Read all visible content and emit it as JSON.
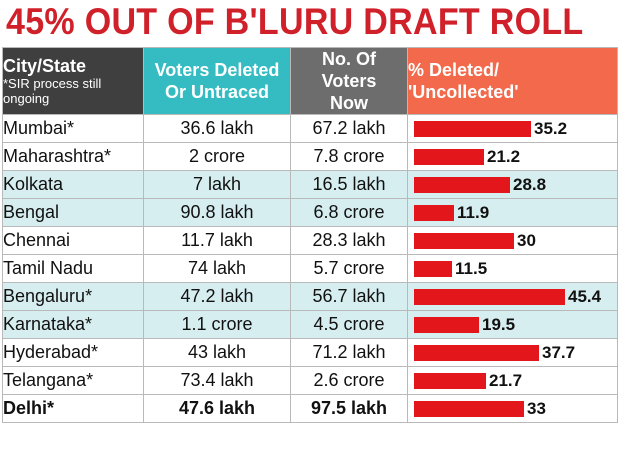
{
  "headline": "45% OUT OF B'LURU DRAFT ROLL",
  "columns": {
    "city": "City/State",
    "city_note": "*SIR process still ongoing",
    "deleted": "Voters Deleted Or Untraced",
    "now": "No. Of Voters Now",
    "pct": "% Deleted/ 'Uncollected'"
  },
  "colors": {
    "bar": "#e3161b",
    "headline": "#d0202a",
    "shade": "#d7eef0"
  },
  "chart_data": {
    "type": "bar",
    "title": "45% OUT OF B'LURU DRAFT ROLL",
    "xlim": [
      0,
      50
    ],
    "categories": [
      "Mumbai*",
      "Maharashtra*",
      "Kolkata",
      "Bengal",
      "Chennai",
      "Tamil Nadu",
      "Bengaluru*",
      "Karnataka*",
      "Hyderabad*",
      "Telangana*",
      "Delhi*"
    ],
    "values": [
      35.2,
      21.2,
      28.8,
      11.9,
      30,
      11.5,
      45.4,
      19.5,
      37.7,
      21.7,
      33
    ],
    "rows": [
      {
        "name": "Mumbai*",
        "deleted": "36.6 lakh",
        "now": "67.2 lakh",
        "pct": 35.2,
        "label": "35.2",
        "shade": false,
        "bold": false
      },
      {
        "name": "Maharashtra*",
        "deleted": "2 crore",
        "now": "7.8 crore",
        "pct": 21.2,
        "label": "21.2",
        "shade": false,
        "bold": false
      },
      {
        "name": "Kolkata",
        "deleted": "7 lakh",
        "now": "16.5 lakh",
        "pct": 28.8,
        "label": "28.8",
        "shade": true,
        "bold": false
      },
      {
        "name": "Bengal",
        "deleted": "90.8 lakh",
        "now": "6.8 crore",
        "pct": 11.9,
        "label": "11.9",
        "shade": true,
        "bold": false
      },
      {
        "name": "Chennai",
        "deleted": "11.7 lakh",
        "now": "28.3 lakh",
        "pct": 30,
        "label": "30",
        "shade": false,
        "bold": false
      },
      {
        "name": "Tamil Nadu",
        "deleted": "74 lakh",
        "now": "5.7 crore",
        "pct": 11.5,
        "label": "11.5",
        "shade": false,
        "bold": false
      },
      {
        "name": "Bengaluru*",
        "deleted": "47.2 lakh",
        "now": "56.7 lakh",
        "pct": 45.4,
        "label": "45.4",
        "shade": true,
        "bold": false
      },
      {
        "name": "Karnataka*",
        "deleted": "1.1 crore",
        "now": "4.5 crore",
        "pct": 19.5,
        "label": "19.5",
        "shade": true,
        "bold": false
      },
      {
        "name": "Hyderabad*",
        "deleted": "43 lakh",
        "now": "71.2 lakh",
        "pct": 37.7,
        "label": "37.7",
        "shade": false,
        "bold": false
      },
      {
        "name": "Telangana*",
        "deleted": "73.4 lakh",
        "now": "2.6 crore",
        "pct": 21.7,
        "label": "21.7",
        "shade": false,
        "bold": false
      },
      {
        "name": "Delhi*",
        "deleted": "47.6 lakh",
        "now": "97.5 lakh",
        "pct": 33,
        "label": "33",
        "shade": false,
        "bold": true
      }
    ]
  }
}
